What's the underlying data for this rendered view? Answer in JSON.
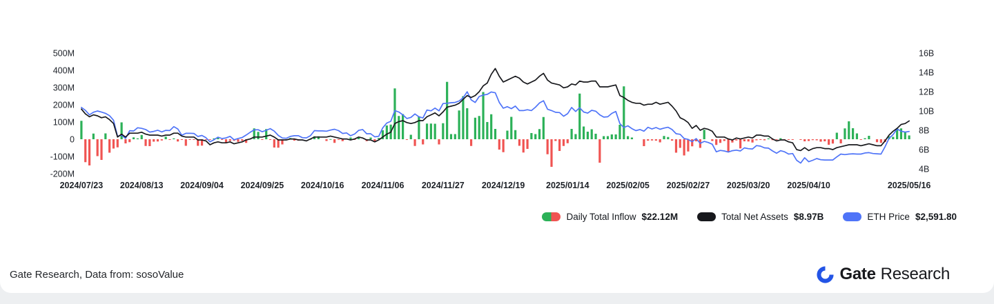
{
  "page": {
    "footer_note": "Gate Research, Data from: sosoValue",
    "brand": {
      "name_bold": "Gate",
      "name_light": "Research",
      "logo_color": "#2354e6"
    }
  },
  "legend": {
    "items": [
      {
        "label": "Daily Total Inflow",
        "value": "$22.12M"
      },
      {
        "label": "Total Net Assets",
        "value": "$8.97B"
      },
      {
        "label": "ETH Price",
        "value": "$2,591.80"
      }
    ]
  },
  "colors": {
    "inflow_positive": "#2cb158",
    "inflow_negative": "#f05452",
    "net_assets": "#17181c",
    "eth_price": "#4f74f8"
  },
  "chart_data": {
    "type": "bar",
    "subtype": "combo-bar-and-lines",
    "description": "Ethereum spot ETF daily total inflow (bars, left axis), total net assets (black line, right axis) and ETH price (blue line, mapped to right axis)",
    "grid": false,
    "legend_position": "bottom-right",
    "x_ticks": [
      "2024/07/23",
      "2024/08/13",
      "2024/09/04",
      "2024/09/25",
      "2024/10/16",
      "2024/11/06",
      "2024/11/27",
      "2024/12/19",
      "2025/01/14",
      "2025/02/05",
      "2025/02/27",
      "2025/03/20",
      "2025/04/10",
      "2025/05/16"
    ],
    "left_axis": {
      "unit": "USD millions",
      "min": -250,
      "max": 550,
      "tick_values": [
        500,
        400,
        300,
        200,
        100,
        0,
        -100,
        -200
      ],
      "tick_labels": [
        "500M",
        "400M",
        "300M",
        "200M",
        "100M",
        "0",
        "-100M",
        "-200M"
      ]
    },
    "right_axis": {
      "unit": "USD billions",
      "min": 4,
      "max": 16,
      "tick_values": [
        16,
        14,
        12,
        10,
        8,
        6,
        4
      ],
      "tick_labels": [
        "16B",
        "14B",
        "12B",
        "10B",
        "8B",
        "6B",
        "4B"
      ]
    },
    "eth_price_plot_anchors": {
      "price": [
        1470,
        4000
      ],
      "right_axis_b": [
        4.6,
        12.0
      ]
    },
    "x": [
      "2024/07/23",
      "2024/07/24",
      "2024/07/25",
      "2024/07/26",
      "2024/07/29",
      "2024/07/30",
      "2024/07/31",
      "2024/08/01",
      "2024/08/02",
      "2024/08/05",
      "2024/08/06",
      "2024/08/07",
      "2024/08/08",
      "2024/08/09",
      "2024/08/12",
      "2024/08/13",
      "2024/08/14",
      "2024/08/15",
      "2024/08/16",
      "2024/08/19",
      "2024/08/20",
      "2024/08/21",
      "2024/08/22",
      "2024/08/23",
      "2024/08/26",
      "2024/08/27",
      "2024/08/28",
      "2024/08/29",
      "2024/08/30",
      "2024/09/03",
      "2024/09/04",
      "2024/09/05",
      "2024/09/06",
      "2024/09/09",
      "2024/09/10",
      "2024/09/11",
      "2024/09/12",
      "2024/09/13",
      "2024/09/16",
      "2024/09/17",
      "2024/09/18",
      "2024/09/19",
      "2024/09/20",
      "2024/09/23",
      "2024/09/24",
      "2024/09/25",
      "2024/09/26",
      "2024/09/27",
      "2024/09/30",
      "2024/10/01",
      "2024/10/02",
      "2024/10/03",
      "2024/10/04",
      "2024/10/07",
      "2024/10/08",
      "2024/10/09",
      "2024/10/10",
      "2024/10/11",
      "2024/10/14",
      "2024/10/15",
      "2024/10/16",
      "2024/10/17",
      "2024/10/18",
      "2024/10/21",
      "2024/10/22",
      "2024/10/23",
      "2024/10/24",
      "2024/10/25",
      "2024/10/28",
      "2024/10/29",
      "2024/10/30",
      "2024/10/31",
      "2024/11/01",
      "2024/11/04",
      "2024/11/05",
      "2024/11/06",
      "2024/11/07",
      "2024/11/08",
      "2024/11/11",
      "2024/11/12",
      "2024/11/13",
      "2024/11/14",
      "2024/11/15",
      "2024/11/18",
      "2024/11/19",
      "2024/11/20",
      "2024/11/21",
      "2024/11/22",
      "2024/11/25",
      "2024/11/26",
      "2024/11/27",
      "2024/11/29",
      "2024/12/02",
      "2024/12/03",
      "2024/12/04",
      "2024/12/05",
      "2024/12/06",
      "2024/12/09",
      "2024/12/10",
      "2024/12/11",
      "2024/12/12",
      "2024/12/13",
      "2024/12/16",
      "2024/12/17",
      "2024/12/18",
      "2024/12/19",
      "2024/12/20",
      "2024/12/23",
      "2024/12/24",
      "2024/12/26",
      "2024/12/27",
      "2024/12/30",
      "2024/12/31",
      "2025/01/02",
      "2025/01/03",
      "2025/01/06",
      "2025/01/07",
      "2025/01/08",
      "2025/01/09",
      "2025/01/10",
      "2025/01/13",
      "2025/01/14",
      "2025/01/15",
      "2025/01/16",
      "2025/01/17",
      "2025/01/21",
      "2025/01/22",
      "2025/01/23",
      "2025/01/24",
      "2025/01/27",
      "2025/01/28",
      "2025/01/29",
      "2025/01/30",
      "2025/01/31",
      "2025/02/03",
      "2025/02/04",
      "2025/02/05",
      "2025/02/06",
      "2025/02/07",
      "2025/02/10",
      "2025/02/11",
      "2025/02/12",
      "2025/02/13",
      "2025/02/14",
      "2025/02/18",
      "2025/02/19",
      "2025/02/20",
      "2025/02/21",
      "2025/02/24",
      "2025/02/25",
      "2025/02/26",
      "2025/02/27",
      "2025/02/28",
      "2025/03/03",
      "2025/03/04",
      "2025/03/05",
      "2025/03/06",
      "2025/03/07",
      "2025/03/10",
      "2025/03/11",
      "2025/03/12",
      "2025/03/13",
      "2025/03/14",
      "2025/03/17",
      "2025/03/18",
      "2025/03/19",
      "2025/03/20",
      "2025/03/21",
      "2025/03/24",
      "2025/03/25",
      "2025/03/26",
      "2025/03/27",
      "2025/03/28",
      "2025/03/31",
      "2025/04/01",
      "2025/04/02",
      "2025/04/03",
      "2025/04/04",
      "2025/04/07",
      "2025/04/08",
      "2025/04/09",
      "2025/04/10",
      "2025/04/11",
      "2025/04/14",
      "2025/04/15",
      "2025/04/16",
      "2025/04/17",
      "2025/04/21",
      "2025/04/22",
      "2025/04/23",
      "2025/04/24",
      "2025/04/25",
      "2025/04/28",
      "2025/04/29",
      "2025/04/30",
      "2025/05/01",
      "2025/05/02",
      "2025/05/05",
      "2025/05/06",
      "2025/05/07",
      "2025/05/08",
      "2025/05/09",
      "2025/05/12",
      "2025/05/13",
      "2025/05/14",
      "2025/05/15",
      "2025/05/16"
    ],
    "series": [
      {
        "name": "Daily Total Inflow",
        "type": "bar",
        "axis": "left",
        "unit": "USD millions",
        "values": [
          107,
          -133,
          -152,
          33,
          -98,
          -120,
          34,
          -78,
          -54,
          -47,
          98,
          -24,
          -17,
          11,
          5,
          25,
          -39,
          -40,
          -14,
          -13,
          -7,
          15,
          -1,
          5,
          -13,
          -4,
          -38,
          -1,
          -1,
          -38,
          -37,
          -1,
          -3,
          5,
          11,
          -1,
          -20,
          -10,
          -9,
          -15,
          -9,
          -21,
          3,
          63,
          43,
          -1,
          59,
          -1,
          -48,
          -49,
          -30,
          -3,
          7,
          -8,
          -8,
          0,
          0,
          1,
          17,
          17,
          0,
          -10,
          1,
          -21,
          -3,
          -11,
          0,
          10,
          -1,
          8,
          0,
          -11,
          10,
          -11,
          7,
          52,
          80,
          85,
          295,
          135,
          146,
          -3,
          26,
          -39,
          133,
          -30,
          91,
          91,
          90,
          -30,
          93,
          333,
          30,
          30,
          167,
          250,
          180,
          -39,
          125,
          135,
          274,
          100,
          145,
          60,
          -60,
          -75,
          50,
          130,
          53,
          -38,
          -77,
          -56,
          36,
          30,
          59,
          129,
          -87,
          -160,
          -10,
          -68,
          -39,
          -23,
          60,
          30,
          265,
          74,
          44,
          58,
          32,
          -136,
          18,
          18,
          28,
          28,
          84,
          307,
          18,
          10,
          0,
          0,
          -40,
          -8,
          -7,
          -8,
          -18,
          19,
          13,
          -8,
          -78,
          -50,
          -94,
          -71,
          -41,
          -12,
          -50,
          55,
          0,
          -10,
          -33,
          -21,
          -10,
          -74,
          -19,
          -7,
          -53,
          -12,
          -13,
          -19,
          -6,
          -3,
          -6,
          5,
          -5,
          -2,
          6,
          -4,
          -3,
          -2,
          0,
          -3,
          -12,
          -10,
          -5,
          -6,
          -14,
          -12,
          -32,
          -25,
          38,
          -24,
          63,
          104,
          64,
          34,
          -2,
          6,
          20,
          0,
          -17,
          -21,
          -16,
          17,
          14,
          64,
          63,
          40,
          22.12
        ]
      },
      {
        "name": "Total Net Assets",
        "type": "line",
        "axis": "right",
        "unit": "USD billions",
        "values": [
          10.2,
          9.7,
          9.4,
          9.6,
          9.5,
          9.3,
          9.4,
          9.1,
          8.7,
          7.3,
          7.6,
          7.3,
          7.7,
          7.7,
          7.7,
          7.8,
          7.6,
          7.5,
          7.5,
          7.5,
          7.4,
          7.5,
          7.5,
          7.7,
          7.7,
          7.4,
          7.3,
          7.3,
          7.3,
          7.0,
          7.0,
          6.9,
          6.5,
          6.7,
          6.8,
          6.7,
          6.7,
          6.8,
          6.6,
          6.7,
          6.8,
          7.0,
          7.1,
          7.3,
          7.3,
          7.3,
          7.4,
          7.5,
          7.3,
          7.0,
          7.0,
          7.0,
          7.1,
          7.1,
          7.0,
          7.0,
          6.9,
          7.1,
          7.3,
          7.3,
          7.3,
          7.3,
          7.4,
          7.3,
          7.2,
          7.1,
          7.1,
          7.0,
          7.1,
          7.3,
          7.2,
          7.0,
          7.0,
          6.8,
          7.0,
          7.3,
          7.6,
          7.8,
          8.7,
          8.9,
          9.0,
          8.8,
          8.7,
          8.8,
          9.0,
          9.0,
          9.4,
          9.6,
          9.8,
          9.5,
          9.9,
          10.4,
          10.5,
          10.6,
          10.8,
          11.2,
          11.6,
          11.4,
          11.6,
          12.0,
          12.6,
          12.9,
          13.8,
          14.4,
          13.6,
          13.0,
          13.2,
          13.4,
          13.6,
          13.4,
          13.0,
          12.8,
          13.0,
          13.2,
          13.6,
          13.9,
          13.2,
          12.9,
          12.8,
          12.7,
          12.4,
          12.5,
          12.8,
          12.7,
          13.1,
          13.0,
          13.0,
          13.1,
          13.1,
          12.5,
          12.5,
          12.5,
          12.6,
          12.7,
          11.6,
          11.4,
          11.1,
          10.9,
          10.8,
          10.8,
          10.6,
          10.7,
          10.7,
          10.9,
          10.7,
          10.8,
          10.9,
          10.5,
          10.0,
          9.3,
          9.1,
          8.8,
          8.2,
          8.5,
          8.0,
          8.2,
          8.1,
          7.9,
          7.3,
          7.3,
          7.3,
          7.1,
          7.0,
          7.2,
          7.1,
          7.2,
          7.3,
          7.2,
          7.5,
          7.5,
          7.4,
          7.4,
          7.1,
          6.9,
          7.0,
          7.0,
          6.8,
          6.7,
          6.0,
          5.9,
          6.2,
          5.9,
          6.1,
          6.2,
          6.2,
          6.1,
          6.1,
          6.0,
          6.2,
          6.3,
          6.4,
          6.5,
          6.5,
          6.5,
          6.4,
          6.5,
          6.6,
          6.5,
          6.4,
          6.4,
          6.9,
          7.5,
          7.9,
          8.2,
          8.6,
          8.7,
          8.97
        ]
      },
      {
        "name": "ETH Price",
        "type": "line",
        "axis": "right-mapped",
        "unit": "USD",
        "values": [
          3442,
          3337,
          3179,
          3273,
          3316,
          3278,
          3232,
          3150,
          2988,
          2419,
          2462,
          2342,
          2617,
          2608,
          2722,
          2702,
          2660,
          2569,
          2593,
          2635,
          2575,
          2630,
          2622,
          2762,
          2680,
          2456,
          2525,
          2527,
          2520,
          2412,
          2450,
          2368,
          2225,
          2297,
          2389,
          2340,
          2362,
          2417,
          2295,
          2341,
          2375,
          2465,
          2561,
          2647,
          2653,
          2580,
          2632,
          2690,
          2602,
          2450,
          2360,
          2350,
          2414,
          2440,
          2440,
          2370,
          2365,
          2440,
          2620,
          2610,
          2610,
          2600,
          2640,
          2670,
          2620,
          2520,
          2540,
          2440,
          2500,
          2630,
          2660,
          2510,
          2510,
          2400,
          2420,
          2720,
          2890,
          2950,
          3330,
          3280,
          3180,
          3050,
          3090,
          3210,
          3110,
          3070,
          3350,
          3320,
          3420,
          3320,
          3580,
          3590,
          3610,
          3620,
          3670,
          3785,
          3998,
          3710,
          3620,
          3830,
          3880,
          3905,
          3990,
          3960,
          3620,
          3415,
          3470,
          3400,
          3490,
          3330,
          3330,
          3360,
          3330,
          3450,
          3600,
          3680,
          3380,
          3330,
          3270,
          3260,
          3130,
          3220,
          3440,
          3300,
          3430,
          3280,
          3240,
          3340,
          3310,
          3180,
          3100,
          3110,
          3230,
          3300,
          2870,
          2730,
          2790,
          2690,
          2620,
          2660,
          2600,
          2740,
          2680,
          2730,
          2670,
          2710,
          2740,
          2660,
          2510,
          2490,
          2340,
          2310,
          2230,
          2340,
          2170,
          2240,
          2200,
          2140,
          1870,
          1920,
          1900,
          1860,
          1910,
          1930,
          1900,
          2010,
          1980,
          1970,
          2090,
          2070,
          2010,
          2000,
          1900,
          1820,
          1910,
          1870,
          1790,
          1810,
          1570,
          1470,
          1660,
          1520,
          1570,
          1630,
          1590,
          1580,
          1580,
          1580,
          1690,
          1790,
          1770,
          1790,
          1800,
          1790,
          1790,
          1830,
          1840,
          1810,
          1800,
          1790,
          2050,
          2350,
          2480,
          2680,
          2600,
          2570,
          2591.8
        ]
      }
    ]
  }
}
